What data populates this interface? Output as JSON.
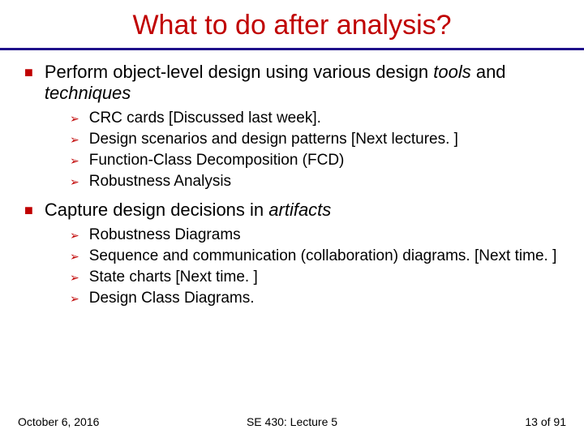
{
  "title": "What to do after analysis?",
  "colors": {
    "accent": "#c00000",
    "rule": "#1e0f8a",
    "text": "#000000",
    "background": "#ffffff"
  },
  "fonts": {
    "title_size": 34,
    "lvl1_size": 22,
    "lvl2_size": 19,
    "footer_size": 14
  },
  "bullets": [
    {
      "text_lead": "Perform object-level design using various design ",
      "text_italic": "tools",
      "text_mid": " and ",
      "text_italic2": "techniques",
      "sub": [
        "CRC cards [Discussed last week].",
        "Design scenarios and design patterns [Next lectures. ]",
        "Function-Class Decomposition (FCD)",
        "Robustness Analysis"
      ]
    },
    {
      "text_lead": "Capture design decisions in ",
      "text_italic": "artifacts",
      "text_mid": "",
      "text_italic2": "",
      "sub": [
        "Robustness Diagrams",
        "Sequence and communication (collaboration) diagrams. [Next time. ]",
        "State charts [Next time. ]",
        "Design Class Diagrams."
      ]
    }
  ],
  "footer": {
    "left": "October 6, 2016",
    "center": "SE 430: Lecture 5",
    "right": "13 of 91"
  }
}
